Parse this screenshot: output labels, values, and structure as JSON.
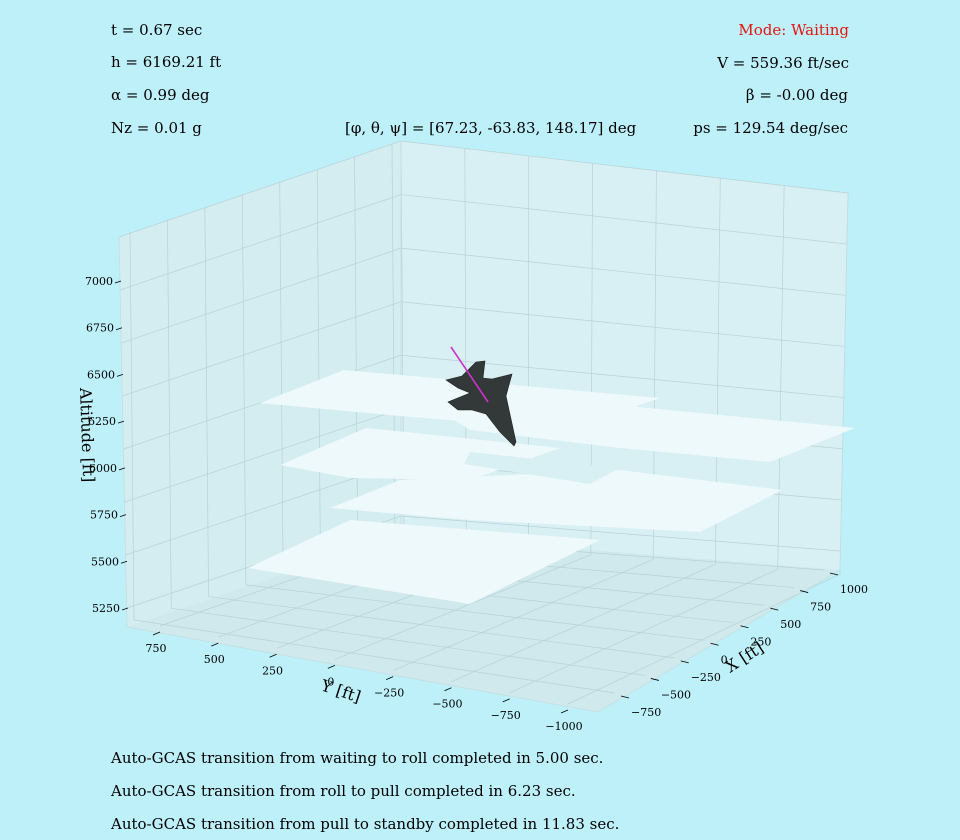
{
  "hud": {
    "time": "t = 0.67 sec",
    "altitude": "h = 6169.21 ft",
    "alpha": "α = 0.99 deg",
    "nz": "Nz = 0.01 g",
    "mode": "Mode: Waiting",
    "velocity": "V = 559.36 ft/sec",
    "beta": "β = -0.00 deg",
    "euler": "[φ, θ, ψ] = [67.23, -63.83, 148.17] deg",
    "ps": "ps = 129.54 deg/sec",
    "mode_color": "#e5140e"
  },
  "log": [
    "Auto-GCAS transition from waiting to roll completed in 5.00 sec.",
    "Auto-GCAS transition from roll to pull completed in 6.23 sec.",
    "Auto-GCAS transition from pull to standby completed in 11.83 sec."
  ],
  "chart_data": {
    "type": "3d-trajectory",
    "title": "",
    "xlabel": "X [ft]",
    "ylabel": "Y [ft]",
    "zlabel": "Altitude [ft]",
    "x_ticks": [
      "−750",
      "−500",
      "−250",
      "0",
      "250",
      "500",
      "750",
      "1000"
    ],
    "y_ticks": [
      "750",
      "500",
      "250",
      "0",
      "−250",
      "−500",
      "−750",
      "−1000"
    ],
    "z_ticks": [
      "5250",
      "5500",
      "5750",
      "6000",
      "6250",
      "6500",
      "6750",
      "7000"
    ],
    "grid": true,
    "background_color": "#bdf0f9",
    "aircraft_color": "#333838",
    "trajectory_color": "#cc33cc",
    "terrain_color": "#eef9fb"
  }
}
